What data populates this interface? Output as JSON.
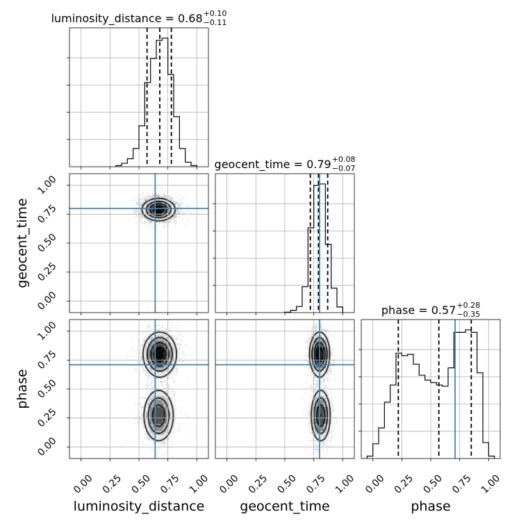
{
  "chart_data": {
    "type": "corner",
    "parameters": [
      "luminosity_distance",
      "geocent_time",
      "phase"
    ],
    "tick_labels": [
      "0.00",
      "0.25",
      "0.50",
      "0.75",
      "1.00"
    ],
    "tick_values": [
      0.0,
      0.25,
      0.5,
      0.75,
      1.0
    ],
    "axis_range": [
      -0.1,
      1.1
    ],
    "truths": {
      "luminosity_distance": 0.64,
      "geocent_time": 0.8,
      "phase": 0.71
    },
    "titles": [
      {
        "param": "luminosity_distance",
        "label": "luminosity_distance = 0.68",
        "upper": "+0.10",
        "lower": "−0.11"
      },
      {
        "param": "geocent_time",
        "label": "geocent_time = 0.79",
        "upper": "+0.08",
        "lower": "−0.07"
      },
      {
        "param": "phase",
        "label": "phase = 0.57",
        "upper": "+0.28",
        "lower": "−0.35"
      }
    ],
    "histograms": {
      "luminosity_distance": {
        "bin_edges": [
          0.3,
          0.35,
          0.4,
          0.45,
          0.5,
          0.55,
          0.6,
          0.65,
          0.7,
          0.75,
          0.8,
          0.85,
          0.9,
          0.95,
          1.0
        ],
        "counts": [
          2,
          6,
          14,
          32,
          72,
          148,
          190,
          222,
          226,
          162,
          88,
          32,
          8,
          2
        ],
        "quantiles": [
          0.57,
          0.68,
          0.78
        ]
      },
      "geocent_time": {
        "bin_edges": [
          0.5,
          0.55,
          0.6,
          0.65,
          0.7,
          0.75,
          0.8,
          0.85,
          0.9,
          0.95,
          1.0
        ],
        "counts": [
          2,
          10,
          26,
          110,
          360,
          540,
          546,
          290,
          104,
          24
        ],
        "quantiles": [
          0.72,
          0.79,
          0.87
        ]
      },
      "phase": {
        "bin_edges": [
          -0.05,
          0.0,
          0.05,
          0.1,
          0.15,
          0.2,
          0.25,
          0.3,
          0.35,
          0.4,
          0.45,
          0.5,
          0.55,
          0.6,
          0.65,
          0.7,
          0.75,
          0.8,
          0.85,
          0.9,
          0.95,
          1.0,
          1.05
        ],
        "counts": [
          2,
          12,
          25,
          46,
          60,
          86,
          84,
          85,
          77,
          68,
          64,
          62,
          60,
          59,
          74,
          103,
          103,
          105,
          103,
          70,
          13,
          2
        ],
        "quantiles": [
          0.22,
          0.57,
          0.85
        ]
      }
    },
    "joint_densities": [
      {
        "x": "luminosity_distance",
        "y": "geocent_time",
        "blobs": [
          {
            "mx": 0.67,
            "my": 0.79,
            "sx": 0.075,
            "sy": 0.05,
            "w": 1.0
          }
        ]
      },
      {
        "x": "luminosity_distance",
        "y": "phase",
        "blobs": [
          {
            "mx": 0.68,
            "my": 0.8,
            "sx": 0.075,
            "sy": 0.1,
            "w": 1.0
          },
          {
            "mx": 0.67,
            "my": 0.27,
            "sx": 0.07,
            "sy": 0.12,
            "w": 0.8
          }
        ]
      },
      {
        "x": "geocent_time",
        "y": "phase",
        "blobs": [
          {
            "mx": 0.8,
            "my": 0.8,
            "sx": 0.045,
            "sy": 0.1,
            "w": 1.0
          },
          {
            "mx": 0.81,
            "my": 0.27,
            "sx": 0.045,
            "sy": 0.12,
            "w": 0.8
          }
        ]
      }
    ],
    "grid": true
  }
}
